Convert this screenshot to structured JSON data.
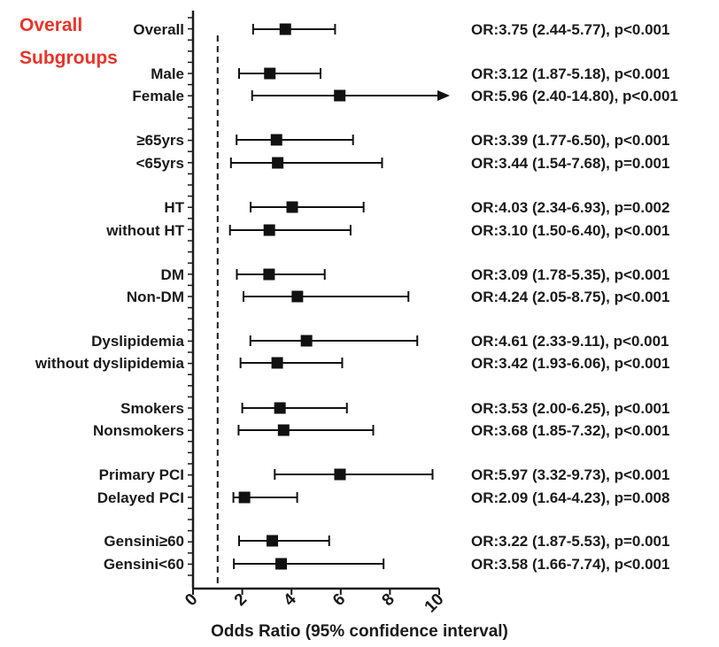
{
  "chart_data": {
    "type": "forest",
    "xlabel": "Odds Ratio (95% confidence interval)",
    "xlim": [
      0,
      10
    ],
    "xticks": [
      0,
      2,
      4,
      6,
      8,
      10
    ],
    "reference_line": 1,
    "headings": {
      "overall": "Overall",
      "subgroups": "Subgroups"
    },
    "colors": {
      "heading": "#e8342a",
      "marker": "#111111",
      "axis": "#1a1a1a"
    },
    "rows": [
      {
        "label": "Overall",
        "or": 3.75,
        "lo": 2.44,
        "hi": 5.77,
        "text": "OR:3.75 (2.44-5.77), p<0.001"
      },
      {
        "label": "Male",
        "or": 3.12,
        "lo": 1.87,
        "hi": 5.18,
        "text": "OR:3.12 (1.87-5.18), p<0.001"
      },
      {
        "label": "Female",
        "or": 5.96,
        "lo": 2.4,
        "hi": 14.8,
        "text": "OR:5.96 (2.40-14.80), p<0.001"
      },
      {
        "label": "≥65yrs",
        "or": 3.39,
        "lo": 1.77,
        "hi": 6.5,
        "text": "OR:3.39 (1.77-6.50), p<0.001"
      },
      {
        "label": "<65yrs",
        "or": 3.44,
        "lo": 1.54,
        "hi": 7.68,
        "text": "OR:3.44 (1.54-7.68), p=0.001"
      },
      {
        "label": "HT",
        "or": 4.03,
        "lo": 2.34,
        "hi": 6.93,
        "text": "OR:4.03 (2.34-6.93), p=0.002"
      },
      {
        "label": "without HT",
        "or": 3.1,
        "lo": 1.5,
        "hi": 6.4,
        "text": "OR:3.10 (1.50-6.40), p<0.001"
      },
      {
        "label": "DM",
        "or": 3.09,
        "lo": 1.78,
        "hi": 5.35,
        "text": "OR:3.09 (1.78-5.35), p<0.001"
      },
      {
        "label": "Non-DM",
        "or": 4.24,
        "lo": 2.05,
        "hi": 8.75,
        "text": "OR:4.24 (2.05-8.75), p<0.001"
      },
      {
        "label": "Dyslipidemia",
        "or": 4.61,
        "lo": 2.33,
        "hi": 9.11,
        "text": "OR:4.61 (2.33-9.11), p<0.001"
      },
      {
        "label": "without dyslipidemia",
        "or": 3.42,
        "lo": 1.93,
        "hi": 6.06,
        "text": "OR:3.42 (1.93-6.06), p<0.001"
      },
      {
        "label": "Smokers",
        "or": 3.53,
        "lo": 2.0,
        "hi": 6.25,
        "text": "OR:3.53 (2.00-6.25), p<0.001"
      },
      {
        "label": "Nonsmokers",
        "or": 3.68,
        "lo": 1.85,
        "hi": 7.32,
        "text": "OR:3.68 (1.85-7.32), p<0.001"
      },
      {
        "label": "Primary PCI",
        "or": 5.97,
        "lo": 3.32,
        "hi": 9.73,
        "text": "OR:5.97 (3.32-9.73), p<0.001"
      },
      {
        "label": "Delayed PCI",
        "or": 2.09,
        "lo": 1.64,
        "hi": 4.23,
        "text": "OR:2.09 (1.64-4.23), p=0.008"
      },
      {
        "label": "Gensini≥60",
        "or": 3.22,
        "lo": 1.87,
        "hi": 5.53,
        "text": "OR:3.22 (1.87-5.53), p=0.001"
      },
      {
        "label": "Gensini<60",
        "or": 3.58,
        "lo": 1.66,
        "hi": 7.74,
        "text": "OR:3.58 (1.66-7.74), p<0.001"
      }
    ]
  }
}
